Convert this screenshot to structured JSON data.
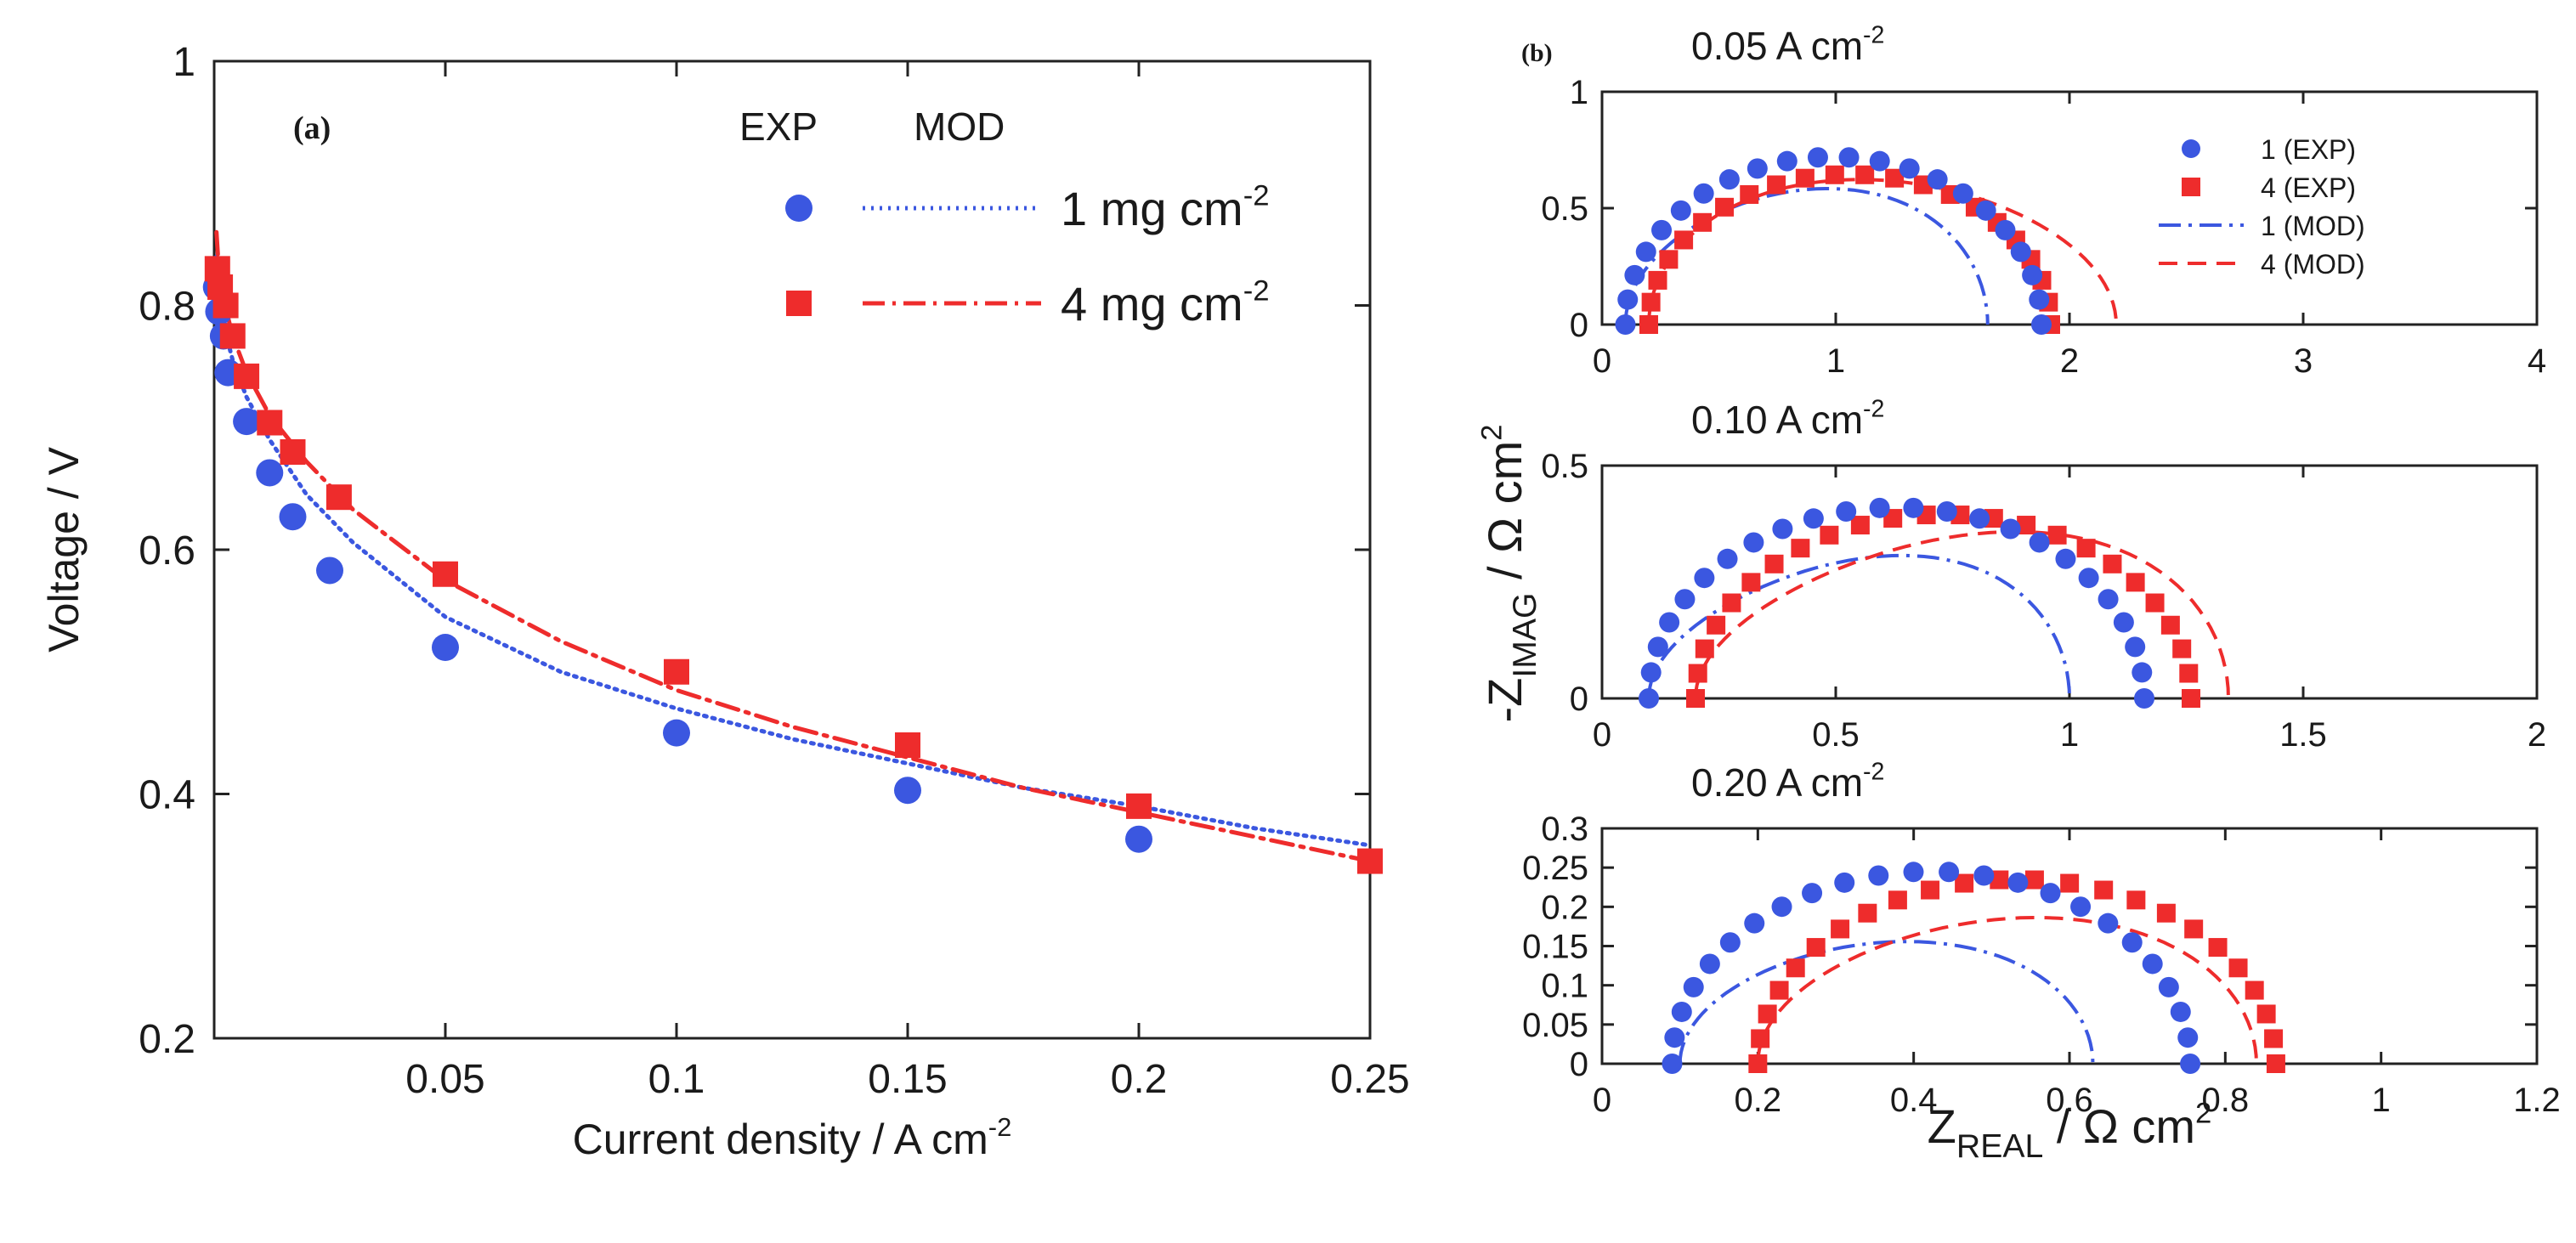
{
  "chart_data": [
    {
      "id": "a",
      "type": "line+scatter",
      "panel_label": "(a)",
      "xlabel": "Current density / A cm",
      "xlabel_sup": "-2",
      "ylabel": "Voltage / V",
      "xlim": [
        0,
        0.25
      ],
      "ylim": [
        0.2,
        1.0
      ],
      "xticks": [
        0.05,
        0.1,
        0.15,
        0.2,
        0.25
      ],
      "xtick_labels": [
        "0.05",
        "0.1",
        "0.15",
        "0.2",
        "0.25"
      ],
      "yticks": [
        0.2,
        0.4,
        0.6,
        0.8,
        1.0
      ],
      "ytick_labels": [
        "0.2",
        "0.4",
        "0.6",
        "0.8",
        "1"
      ],
      "legend": {
        "header_exp": "EXP",
        "header_mod": "MOD",
        "entries": [
          {
            "label": "1 mg cm",
            "sup": "-2",
            "series": "1mg"
          },
          {
            "label": "4 mg cm",
            "sup": "-2",
            "series": "4mg"
          }
        ]
      },
      "series": [
        {
          "name": "1 mg cm-2",
          "color": "#3b57e0",
          "marker": "circle",
          "line": "dotted",
          "exp": [
            [
              0.0005,
              0.815
            ],
            [
              0.001,
              0.795
            ],
            [
              0.002,
              0.775
            ],
            [
              0.003,
              0.745
            ],
            [
              0.007,
              0.705
            ],
            [
              0.012,
              0.663
            ],
            [
              0.017,
              0.627
            ],
            [
              0.025,
              0.583
            ],
            [
              0.05,
              0.52
            ],
            [
              0.1,
              0.45
            ],
            [
              0.15,
              0.403
            ],
            [
              0.2,
              0.363
            ]
          ],
          "mod": [
            [
              0.0005,
              0.84
            ],
            [
              0.001,
              0.81
            ],
            [
              0.002,
              0.785
            ],
            [
              0.004,
              0.755
            ],
            [
              0.007,
              0.725
            ],
            [
              0.012,
              0.69
            ],
            [
              0.02,
              0.645
            ],
            [
              0.03,
              0.606
            ],
            [
              0.05,
              0.545
            ],
            [
              0.075,
              0.5
            ],
            [
              0.1,
              0.47
            ],
            [
              0.125,
              0.445
            ],
            [
              0.15,
              0.425
            ],
            [
              0.175,
              0.405
            ],
            [
              0.2,
              0.39
            ],
            [
              0.225,
              0.372
            ],
            [
              0.25,
              0.358
            ]
          ]
        },
        {
          "name": "4 mg cm-2",
          "color": "#ee2c2c",
          "marker": "square",
          "line": "dashdot",
          "exp": [
            [
              0.0007,
              0.83
            ],
            [
              0.0013,
              0.815
            ],
            [
              0.0025,
              0.8
            ],
            [
              0.004,
              0.775
            ],
            [
              0.007,
              0.742
            ],
            [
              0.012,
              0.704
            ],
            [
              0.017,
              0.68
            ],
            [
              0.027,
              0.643
            ],
            [
              0.05,
              0.58
            ],
            [
              0.1,
              0.5
            ],
            [
              0.15,
              0.44
            ],
            [
              0.2,
              0.39
            ],
            [
              0.25,
              0.345
            ]
          ],
          "mod": [
            [
              0.0005,
              0.86
            ],
            [
              0.001,
              0.83
            ],
            [
              0.002,
              0.805
            ],
            [
              0.004,
              0.775
            ],
            [
              0.007,
              0.745
            ],
            [
              0.012,
              0.71
            ],
            [
              0.02,
              0.672
            ],
            [
              0.03,
              0.633
            ],
            [
              0.05,
              0.575
            ],
            [
              0.075,
              0.525
            ],
            [
              0.1,
              0.485
            ],
            [
              0.125,
              0.455
            ],
            [
              0.15,
              0.43
            ],
            [
              0.175,
              0.405
            ],
            [
              0.2,
              0.385
            ],
            [
              0.225,
              0.365
            ],
            [
              0.25,
              0.345
            ]
          ]
        }
      ]
    },
    {
      "id": "b",
      "type": "nyquist",
      "panel_label": "(b)",
      "ylabel_main": "-Z",
      "ylabel_sub": "IMAG",
      "ylabel_rest": " / Ω cm",
      "ylabel_sup": "2",
      "xlabel_main": "Z",
      "xlabel_sub": "REAL",
      "xlabel_rest": " / Ω cm",
      "xlabel_sup": "2",
      "legend": [
        {
          "label": "1 (EXP)",
          "kind": "circle",
          "color": "#3b57e0"
        },
        {
          "label": "4 (EXP)",
          "kind": "square",
          "color": "#ee2c2c"
        },
        {
          "label": "1 (MOD)",
          "kind": "dashdot",
          "color": "#3b57e0"
        },
        {
          "label": "4 (MOD)",
          "kind": "dashed",
          "color": "#ee2c2c"
        }
      ],
      "panels": [
        {
          "title": "0.05 A cm",
          "title_sup": "-2",
          "xlim": [
            0,
            4
          ],
          "ylim": [
            0,
            1
          ],
          "xticks": [
            0,
            1,
            2,
            3,
            4
          ],
          "xtick_labels": [
            "0",
            "1",
            "2",
            "3",
            "4"
          ],
          "yticks": [
            0,
            0.5,
            1
          ],
          "ytick_labels": [
            "0",
            "0.5",
            "1"
          ],
          "exp1": {
            "r0": 0.1,
            "r1": 1.88,
            "peak": 0.72,
            "n": 22
          },
          "exp4": {
            "r0": 0.2,
            "r1": 1.92,
            "peak": 0.645,
            "n": 22
          },
          "mod1": {
            "r0": 0.1,
            "r1": 1.65,
            "peak": 0.58,
            "skew": 0.12
          },
          "mod4": {
            "r0": 0.2,
            "r1": 2.2,
            "peak": 0.62,
            "skew": -0.1
          }
        },
        {
          "title": "0.10 A cm",
          "title_sup": "-2",
          "xlim": [
            0,
            2
          ],
          "ylim": [
            0,
            0.5
          ],
          "xticks": [
            0,
            0.5,
            1,
            1.5,
            2
          ],
          "xtick_labels": [
            "0",
            "0.5",
            "1",
            "1.5",
            "2"
          ],
          "yticks": [
            0,
            0.5
          ],
          "ytick_labels": [
            "0",
            "0.5"
          ],
          "exp1": {
            "r0": 0.1,
            "r1": 1.16,
            "peak": 0.41,
            "n": 24
          },
          "exp4": {
            "r0": 0.2,
            "r1": 1.26,
            "peak": 0.395,
            "n": 24
          },
          "mod1": {
            "r0": 0.1,
            "r1": 1.0,
            "peak": 0.3,
            "skew": 0.22
          },
          "mod4": {
            "r0": 0.2,
            "r1": 1.34,
            "peak": 0.35,
            "skew": 0.22
          }
        },
        {
          "title": "0.20 A cm",
          "title_sup": "-2",
          "xlim": [
            0,
            1.2
          ],
          "ylim": [
            0,
            0.3
          ],
          "xticks": [
            0,
            0.2,
            0.4,
            0.6,
            0.8,
            1,
            1.2
          ],
          "xtick_labels": [
            "0",
            "0.2",
            "0.4",
            "0.6",
            "0.8",
            "1",
            "1.2"
          ],
          "yticks": [
            0,
            0.05,
            0.1,
            0.15,
            0.2,
            0.25,
            0.3
          ],
          "ytick_labels": [
            "0",
            "0.05",
            "0.1",
            "0.15",
            "0.2",
            "0.25",
            "0.3"
          ],
          "exp1": {
            "r0": 0.09,
            "r1": 0.755,
            "peak": 0.245,
            "n": 24
          },
          "exp4": {
            "r0": 0.2,
            "r1": 0.865,
            "peak": 0.235,
            "n": 24
          },
          "mod1": {
            "r0": 0.1,
            "r1": 0.63,
            "peak": 0.155,
            "skew": 0.1
          },
          "mod4": {
            "r0": 0.2,
            "r1": 0.84,
            "peak": 0.185,
            "skew": 0.12
          }
        }
      ]
    }
  ]
}
